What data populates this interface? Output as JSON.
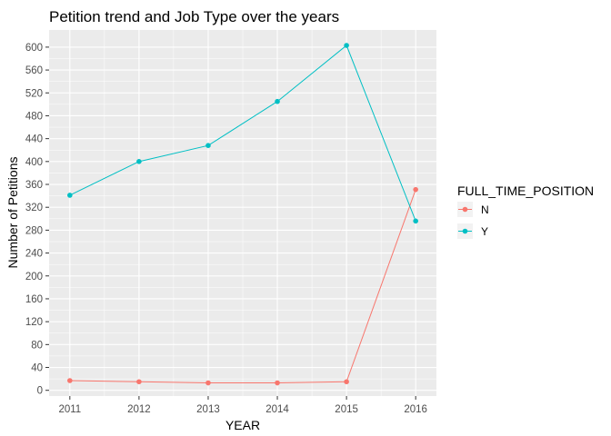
{
  "chart_data": {
    "type": "line",
    "title": "Petition trend and Job Type over the years",
    "xlabel": "YEAR",
    "ylabel": "Number of Petitions",
    "x": [
      2011,
      2012,
      2013,
      2014,
      2015,
      2016
    ],
    "xlim": [
      2010.7,
      2016.3
    ],
    "ylim": [
      -10,
      630
    ],
    "yticks": [
      0,
      40,
      80,
      120,
      160,
      200,
      240,
      280,
      320,
      360,
      400,
      440,
      480,
      520,
      560,
      600
    ],
    "grid": true,
    "legend": {
      "title": "FULL_TIME_POSITION",
      "position": "right"
    },
    "series": [
      {
        "name": "N",
        "color": "#F8766D",
        "values": [
          17,
          15,
          13,
          13,
          15,
          351
        ]
      },
      {
        "name": "Y",
        "color": "#00BFC4",
        "values": [
          341,
          400,
          428,
          505,
          603,
          296
        ]
      }
    ],
    "panel_background": "#EBEBEB",
    "grid_color": "#FFFFFF"
  }
}
